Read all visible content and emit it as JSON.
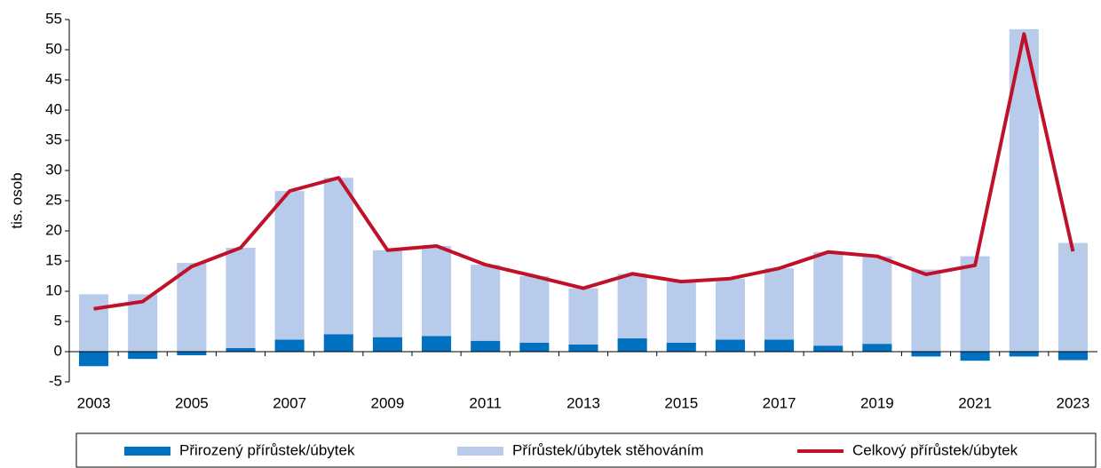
{
  "chart_data": {
    "type": "bar",
    "stacked": true,
    "ylabel": "tis. osob",
    "categories": [
      "2003",
      null,
      "2005",
      null,
      "2007",
      null,
      "2009",
      null,
      "2011",
      null,
      "2013",
      null,
      "2015",
      null,
      "2017",
      null,
      "2019",
      null,
      "2021",
      null,
      "2023"
    ],
    "series": [
      {
        "name": "Přirozený přírůstek/úbytek",
        "type": "bar",
        "color": "#0070c0",
        "values": [
          -2.4,
          -1.2,
          -0.6,
          0.6,
          2.0,
          2.9,
          2.4,
          2.6,
          1.8,
          1.5,
          1.2,
          2.2,
          1.5,
          2.0,
          2.0,
          1.0,
          1.3,
          -0.8,
          -1.5,
          -0.8,
          -1.4
        ]
      },
      {
        "name": "Přírůstek/úbytek stěhováním",
        "type": "bar",
        "color": "#b9cbea",
        "values": [
          9.5,
          9.5,
          14.7,
          16.6,
          24.6,
          25.9,
          14.4,
          14.9,
          12.6,
          11.0,
          9.3,
          10.7,
          10.1,
          10.1,
          11.8,
          15.5,
          14.5,
          13.6,
          15.8,
          53.4,
          18.0
        ]
      },
      {
        "name": "Celkový přírůstek/úbytek",
        "type": "line",
        "color": "#c0102a",
        "values": [
          7.1,
          8.3,
          14.1,
          17.2,
          26.6,
          28.8,
          16.8,
          17.5,
          14.4,
          12.5,
          10.5,
          12.9,
          11.6,
          12.1,
          13.8,
          16.5,
          15.8,
          12.8,
          14.3,
          52.6,
          16.6
        ]
      }
    ],
    "ylim": [
      -5,
      55
    ],
    "yticks": [
      -5,
      0,
      5,
      10,
      15,
      20,
      25,
      30,
      35,
      40,
      45,
      50,
      55
    ],
    "legend": "bottom"
  }
}
